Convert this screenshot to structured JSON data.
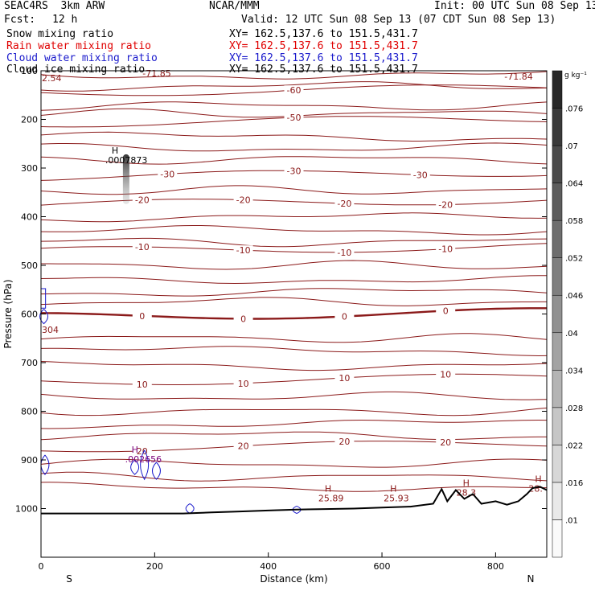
{
  "header": {
    "model": "SEAC4RS  3km ARW",
    "center": "NCAR/MMM",
    "init": "Init: 00 UTC Sun 08 Sep 13",
    "fcst_label": "Fcst:",
    "fcst_value": "12 h",
    "valid": "Valid: 12 UTC Sun 08 Sep 13 (07 CDT Sun 08 Sep 13)"
  },
  "fields": [
    {
      "name": "Snow mixing ratio",
      "xy": "XY= 162.5,137.6 to 151.5,431.7",
      "color": "#000000"
    },
    {
      "name": "Rain water mixing ratio",
      "xy": "XY= 162.5,137.6 to 151.5,431.7",
      "color": "#e00000"
    },
    {
      "name": "Cloud water mixing ratio",
      "xy": "XY= 162.5,137.6 to 151.5,431.7",
      "color": "#1a1acc"
    },
    {
      "name": "Cloud ice mixing ratio",
      "xy": "XY= 162.5,137.6 to 151.5,431.7",
      "color": "#000000"
    }
  ],
  "chart_data": {
    "type": "contour",
    "xlabel": "Distance (km)",
    "ylabel": "Pressure (hPa)",
    "xlim": [
      0,
      890
    ],
    "ylim": [
      1100,
      100
    ],
    "x_ticks": [
      "0",
      "200",
      "400",
      "600",
      "800"
    ],
    "y_ticks": [
      "100",
      "200",
      "300",
      "400",
      "500",
      "600",
      "700",
      "800",
      "900",
      "1000"
    ],
    "x_end_labels": {
      "left": "S",
      "right": "N"
    },
    "colorbar": {
      "unit": "g kg⁻¹",
      "ticks": [
        ".01",
        ".016",
        ".022",
        ".028",
        ".034",
        ".04",
        ".046",
        ".052",
        ".058",
        ".064",
        ".07",
        ".076"
      ]
    },
    "temperature_contours": [
      {
        "pressure": 145,
        "labels": [
          "-60"
        ]
      },
      {
        "pressure": 208,
        "labels": [
          "-50"
        ]
      },
      {
        "pressure": 318,
        "labels": [
          "-30",
          "-30",
          "-30"
        ]
      },
      {
        "pressure": 375,
        "labels": [
          "-20",
          "-20",
          "-20",
          "-20"
        ]
      },
      {
        "pressure": 471,
        "labels": [
          "-10",
          "-10",
          "-10",
          "-10"
        ]
      },
      {
        "pressure": 606,
        "labels": [
          "0",
          "0",
          "0",
          "0"
        ]
      },
      {
        "pressure": 740,
        "labels": [
          "10",
          "10",
          "10",
          "10"
        ]
      },
      {
        "pressure": 876,
        "labels": [
          "20",
          "20",
          "20",
          "20"
        ]
      }
    ],
    "corner_labels": [
      "2.54",
      "-71.85",
      "-71.84",
      "304"
    ],
    "extrema": [
      {
        "marker": "H",
        "value": ".0007873",
        "x_km": 130,
        "pressure": 280
      },
      {
        "marker": "H",
        "value": ".002656",
        "x_km": 165,
        "pressure": 895
      },
      {
        "marker": "H",
        "value": "25.89",
        "x_km": 505,
        "pressure": 975
      },
      {
        "marker": "H",
        "value": "25.93",
        "x_km": 620,
        "pressure": 975
      },
      {
        "marker": "H",
        "value": "28.3",
        "x_km": 748,
        "pressure": 964
      },
      {
        "marker": "H",
        "value": "28.",
        "x_km": 875,
        "pressure": 955
      }
    ],
    "terrain_pressure": [
      [
        0,
        1010
      ],
      [
        250,
        1010
      ],
      [
        300,
        1008
      ],
      [
        350,
        1006
      ],
      [
        400,
        1004
      ],
      [
        450,
        1002
      ],
      [
        500,
        1001
      ],
      [
        550,
        1000
      ],
      [
        600,
        998
      ],
      [
        650,
        996
      ],
      [
        690,
        990
      ],
      [
        705,
        960
      ],
      [
        715,
        985
      ],
      [
        730,
        962
      ],
      [
        745,
        980
      ],
      [
        760,
        970
      ],
      [
        775,
        990
      ],
      [
        800,
        985
      ],
      [
        820,
        992
      ],
      [
        840,
        985
      ],
      [
        855,
        970
      ],
      [
        865,
        958
      ],
      [
        878,
        955
      ],
      [
        890,
        962
      ]
    ]
  }
}
